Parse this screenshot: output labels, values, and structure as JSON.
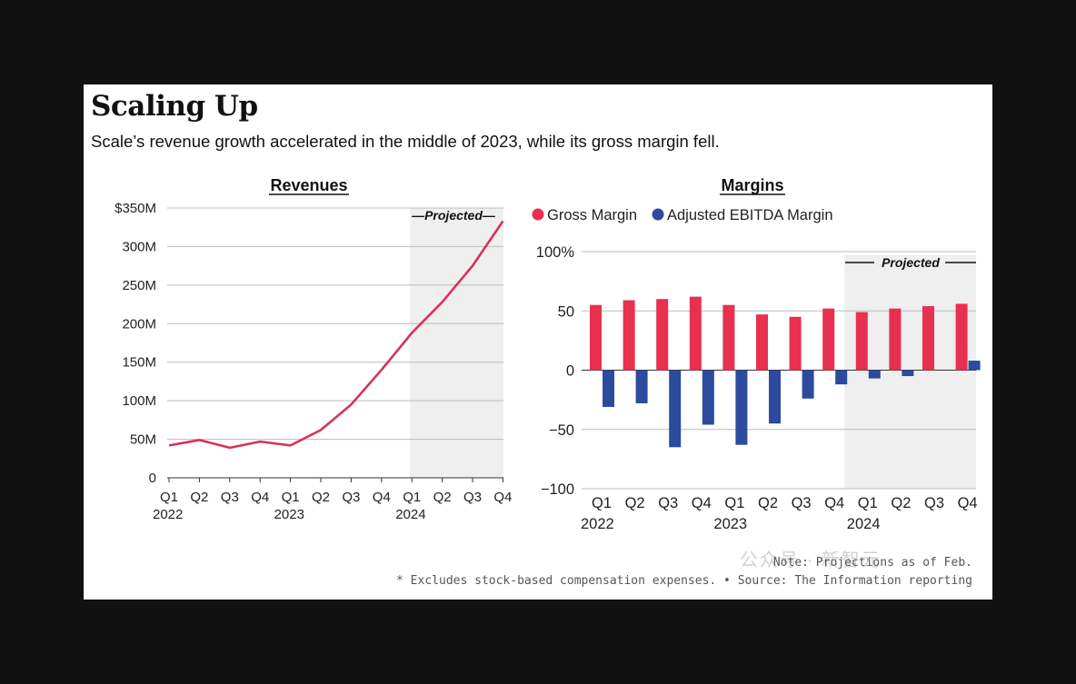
{
  "title": "Scaling Up",
  "subtitle": "Scale’s revenue growth accelerated in the middle of 2023, while its gross margin fell.",
  "note": "Note: Projections as of Feb.",
  "footnote": "* Excludes stock-based compensation expenses. • Source: The Information reporting",
  "watermark": "公众号 · 新智元",
  "colors": {
    "revenue_line": "#d8325a",
    "gross": "#e8304f",
    "ebitda": "#2c4b9e",
    "projected_band": "#efefef",
    "grid": "#bbbbbb"
  },
  "chart_data": [
    {
      "type": "line",
      "title": "Revenues",
      "categories": [
        "Q1",
        "Q2",
        "Q3",
        "Q4",
        "Q1",
        "Q2",
        "Q3",
        "Q4",
        "Q1",
        "Q2",
        "Q3",
        "Q4"
      ],
      "years": [
        {
          "label": "2022",
          "index": 0
        },
        {
          "label": "2023",
          "index": 4
        },
        {
          "label": "2024",
          "index": 8
        }
      ],
      "values": [
        42,
        49,
        39,
        47,
        42,
        62,
        95,
        140,
        188,
        228,
        275,
        333
      ],
      "unit": "$M",
      "ylim": [
        0,
        350
      ],
      "yticks": [
        0,
        50,
        100,
        150,
        200,
        250,
        300,
        350
      ],
      "ytick_labels": [
        "0",
        "50M",
        "100M",
        "150M",
        "200M",
        "250M",
        "300M",
        "$350M"
      ],
      "projected_label": "—Projected—",
      "projected_from_index": 8,
      "xlabel": "",
      "ylabel": "",
      "grid": true
    },
    {
      "type": "bar",
      "title": "Margins",
      "categories": [
        "Q1",
        "Q2",
        "Q3",
        "Q4",
        "Q1",
        "Q2",
        "Q3",
        "Q4",
        "Q1",
        "Q2",
        "Q3",
        "Q4"
      ],
      "years": [
        {
          "label": "2022",
          "index": 0
        },
        {
          "label": "2023",
          "index": 4
        },
        {
          "label": "2024",
          "index": 8
        }
      ],
      "series": [
        {
          "name": "Gross Margin",
          "values": [
            55,
            59,
            60,
            62,
            55,
            47,
            45,
            52,
            49,
            52,
            54,
            56
          ]
        },
        {
          "name": "Adjusted EBITDA Margin",
          "values": [
            -31,
            -28,
            -65,
            -46,
            -63,
            -45,
            -24,
            -12,
            -7,
            -5,
            0,
            8
          ]
        }
      ],
      "ylim": [
        -100,
        100
      ],
      "yticks": [
        -100,
        -50,
        0,
        50,
        100
      ],
      "ytick_labels": [
        "−100",
        "−50",
        "0",
        "50",
        "100%"
      ],
      "projected_label": "Projected",
      "projected_from_index": 8,
      "legend_position": "top-left",
      "xlabel": "",
      "ylabel": "",
      "grid": true
    }
  ]
}
